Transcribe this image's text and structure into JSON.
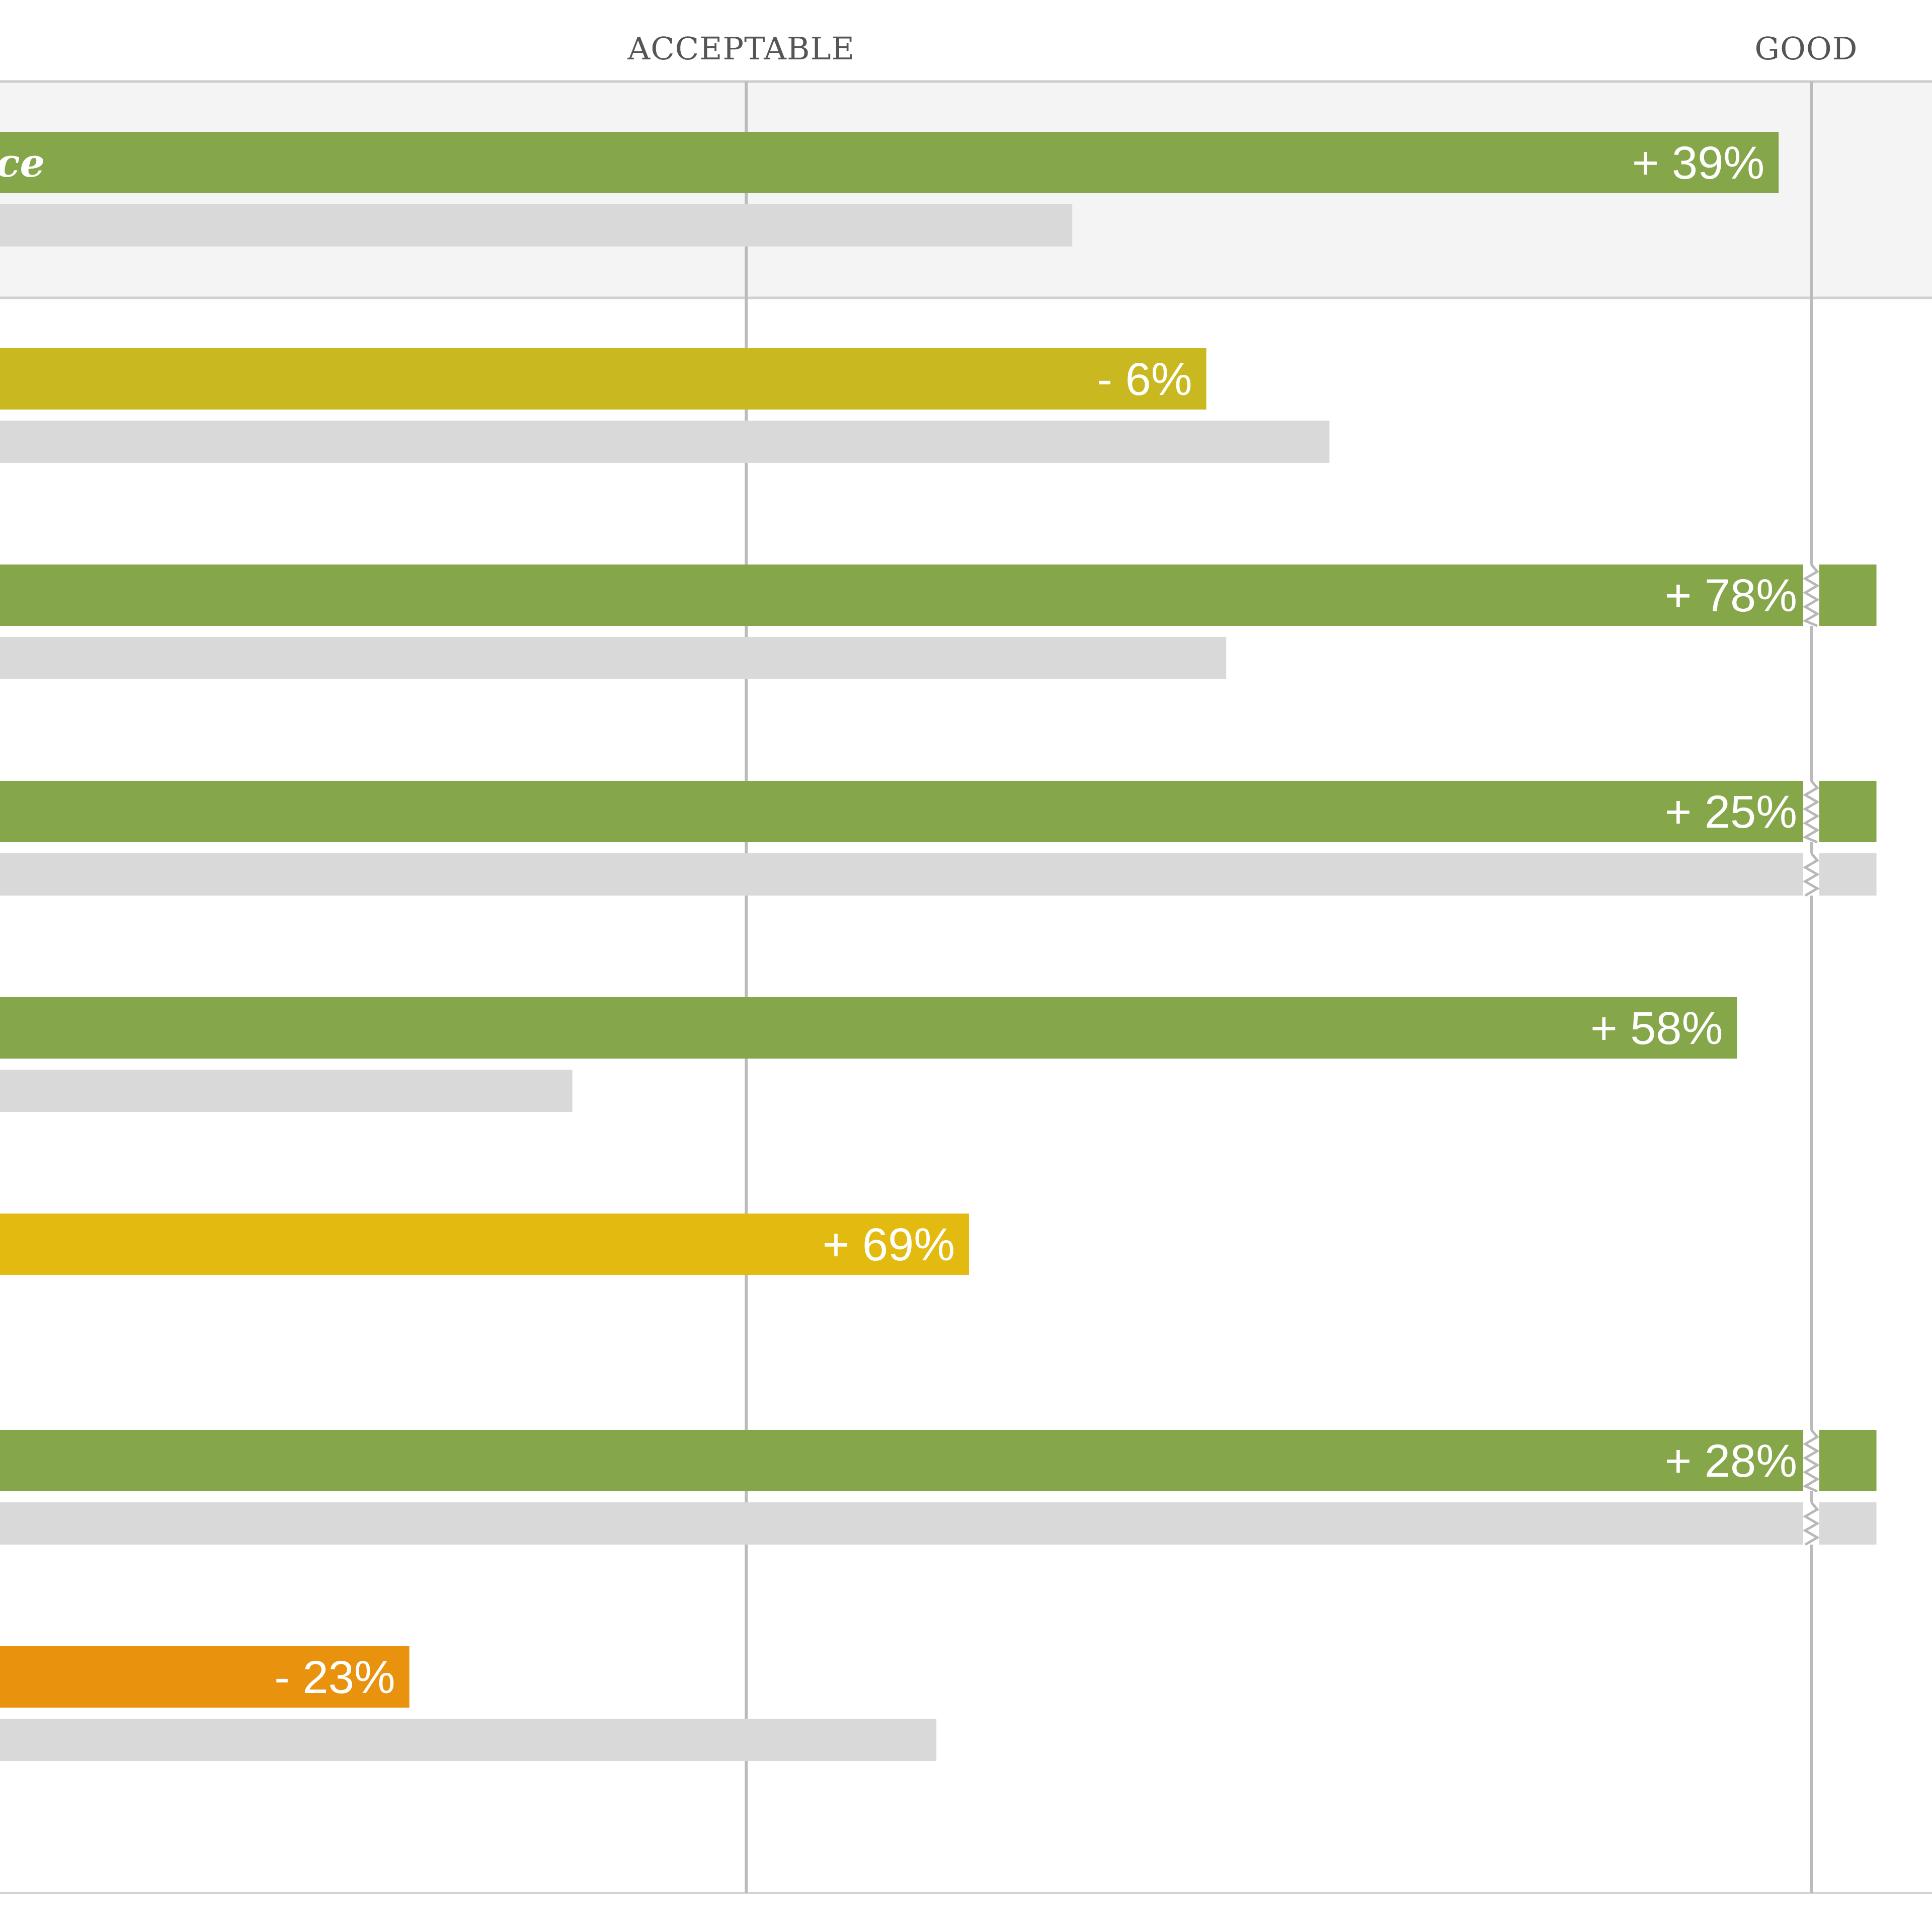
{
  "colors": {
    "green": "#86a64a",
    "olive": "#c9b820",
    "yellow": "#e3bb10",
    "orange": "#e8920e",
    "gray": "#d9d9d9",
    "highlight": "#f4f4f4",
    "threshold_line": "#bbbbbb"
  },
  "chart_data": {
    "type": "bar",
    "orientation": "horizontal",
    "title": "",
    "xlabel": "",
    "ylabel": "",
    "x_scale": "relative (0 = cropped left edge, 100 = GOOD threshold)",
    "xlim": [
      0,
      106.6
    ],
    "thresholds": [
      {
        "label": "ACCEPTABLE",
        "value": 41.2
      },
      {
        "label": "GOOD",
        "value": 100
      }
    ],
    "rows": [
      {
        "category_partial": "ce",
        "highlighted": true,
        "value": 98.2,
        "change_label": "+ 39%",
        "color": "green",
        "comparison_value": 59.2,
        "clipped": false,
        "comparison_clipped": false
      },
      {
        "category_partial": "",
        "highlighted": false,
        "value": 66.6,
        "change_label": "- 6%",
        "color": "olive",
        "comparison_value": 73.4,
        "clipped": false,
        "comparison_clipped": false
      },
      {
        "category_partial": "",
        "highlighted": false,
        "value": 103.6,
        "change_label": "+ 78%",
        "color": "green",
        "comparison_value": 67.7,
        "clipped": true,
        "comparison_clipped": false
      },
      {
        "category_partial": "",
        "highlighted": false,
        "value": 103.6,
        "change_label": "+ 25%",
        "color": "green",
        "comparison_value": 103.6,
        "clipped": true,
        "comparison_clipped": true
      },
      {
        "category_partial": "",
        "highlighted": false,
        "value": 95.9,
        "change_label": "+ 58%",
        "color": "green",
        "comparison_value": 31.6,
        "clipped": false,
        "comparison_clipped": false
      },
      {
        "category_partial": "",
        "highlighted": false,
        "value": 53.5,
        "change_label": "+ 69%",
        "color": "yellow",
        "comparison_value": null,
        "clipped": false,
        "comparison_clipped": false
      },
      {
        "category_partial": "",
        "highlighted": false,
        "value": 103.6,
        "change_label": "+ 28%",
        "color": "green",
        "comparison_value": 103.6,
        "clipped": true,
        "comparison_clipped": true
      },
      {
        "category_partial": "",
        "highlighted": false,
        "value": 22.6,
        "change_label": "- 23%",
        "color": "orange",
        "comparison_value": 51.7,
        "clipped": false,
        "comparison_clipped": false
      }
    ]
  }
}
